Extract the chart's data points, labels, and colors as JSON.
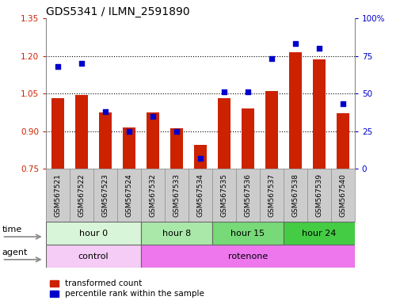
{
  "title": "GDS5341 / ILMN_2591890",
  "samples": [
    "GSM567521",
    "GSM567522",
    "GSM567523",
    "GSM567524",
    "GSM567532",
    "GSM567533",
    "GSM567534",
    "GSM567535",
    "GSM567536",
    "GSM567537",
    "GSM567538",
    "GSM567539",
    "GSM567540"
  ],
  "red_values": [
    1.03,
    1.045,
    0.975,
    0.915,
    0.975,
    0.91,
    0.845,
    1.03,
    0.99,
    1.06,
    1.215,
    1.185,
    0.97
  ],
  "blue_values": [
    68,
    70,
    38,
    25,
    35,
    25,
    7,
    51,
    51,
    73,
    83,
    80,
    43
  ],
  "ylim_left": [
    0.75,
    1.35
  ],
  "ylim_right": [
    0,
    100
  ],
  "yticks_left": [
    0.75,
    0.9,
    1.05,
    1.2,
    1.35
  ],
  "yticks_right": [
    0,
    25,
    50,
    75,
    100
  ],
  "time_groups": [
    {
      "label": "hour 0",
      "start": 0,
      "end": 4,
      "color": "#d9f5d9"
    },
    {
      "label": "hour 8",
      "start": 4,
      "end": 7,
      "color": "#aae8aa"
    },
    {
      "label": "hour 15",
      "start": 7,
      "end": 10,
      "color": "#77d977"
    },
    {
      "label": "hour 24",
      "start": 10,
      "end": 13,
      "color": "#44cc44"
    }
  ],
  "agent_groups": [
    {
      "label": "control",
      "start": 0,
      "end": 4,
      "color": "#f5ccf5"
    },
    {
      "label": "rotenone",
      "start": 4,
      "end": 13,
      "color": "#ee77ee"
    }
  ],
  "bar_color": "#cc2200",
  "dot_color": "#0000cc",
  "bar_width": 0.55,
  "background_color": "#ffffff",
  "sample_bg": "#cccccc",
  "left_axis_color": "#cc2200",
  "right_axis_color": "#0000cc",
  "title_fontsize": 10,
  "tick_fontsize": 7.5,
  "sample_fontsize": 6.5,
  "row_fontsize": 8,
  "legend_fontsize": 7.5
}
